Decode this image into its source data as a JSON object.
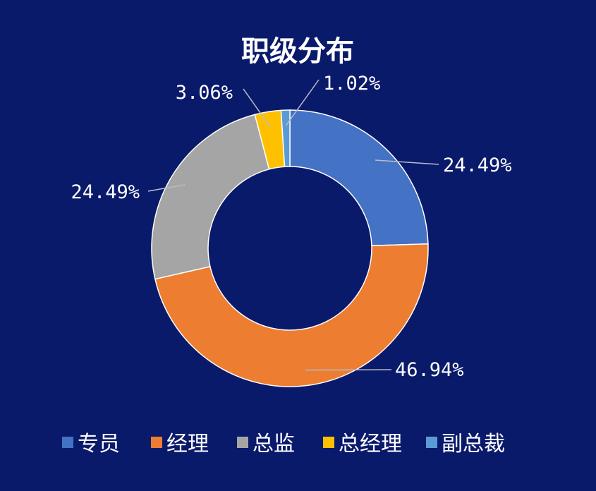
{
  "chart_data": {
    "type": "pie",
    "title": "职级分布",
    "categories": [
      "专员",
      "经理",
      "总监",
      "总经理",
      "副总裁"
    ],
    "values": [
      24.49,
      46.94,
      24.49,
      3.06,
      1.02
    ],
    "labels": [
      "24.49%",
      "46.94%",
      "24.49%",
      "3.06%",
      "1.02%"
    ],
    "colors": [
      "#4472c4",
      "#ed7d31",
      "#a5a5a5",
      "#ffc000",
      "#5b9bd5"
    ],
    "legend_position": "bottom",
    "donut": true
  }
}
